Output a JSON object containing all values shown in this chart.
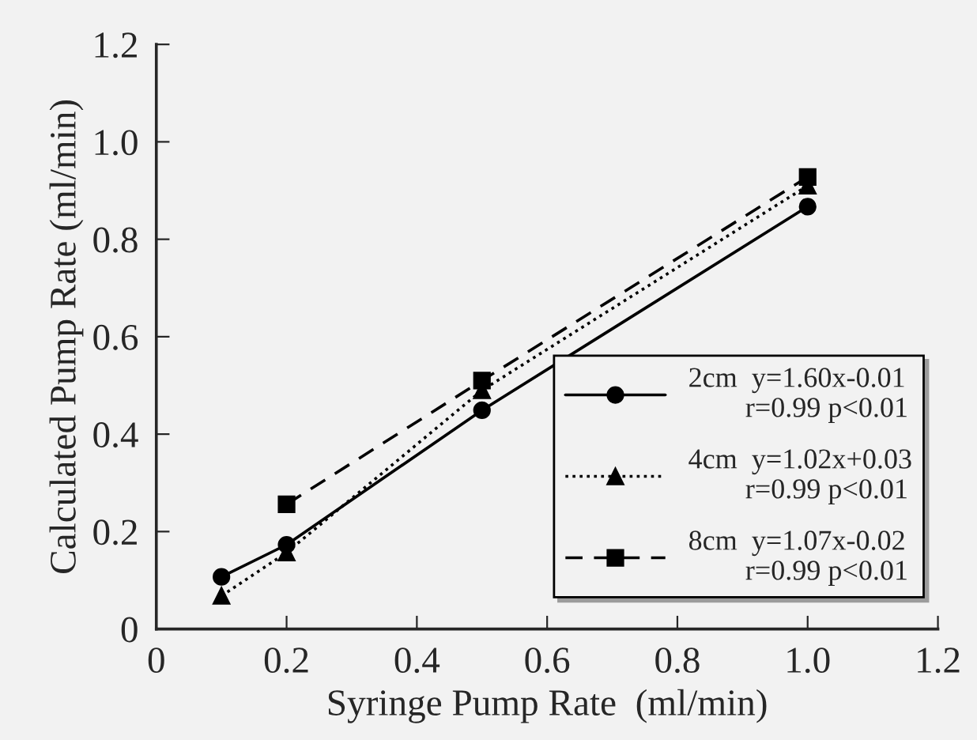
{
  "chart_data": {
    "type": "line",
    "xlabel": "Syringe Pump Rate  (ml/min)",
    "ylabel": "Calculated Pump Rate (ml/min)",
    "xlim": [
      0,
      1.2
    ],
    "xticks": [
      0,
      0.2,
      0.4,
      0.6,
      0.8,
      {
        "value": 1.0,
        "label": "1.0"
      },
      1.2
    ],
    "ylim": [
      0,
      1.2
    ],
    "yticks": [
      0,
      0.2,
      0.4,
      0.6,
      0.8,
      {
        "value": 1.0,
        "label": "1.0"
      },
      1.2
    ],
    "grid": false,
    "legend": "bottom right",
    "series": [
      {
        "name": "2cm  y=1.60x-0.01\n        r=0.99 p<0.01",
        "color": "#000000",
        "marker": "circle",
        "line_style": "solid",
        "x": [
          0.1,
          0.2,
          0.5,
          1.0
        ],
        "values": [
          0.107,
          0.173,
          0.449,
          0.867
        ]
      },
      {
        "name": "4cm  y=1.02x+0.03\n        r=0.99 p<0.01",
        "color": "#000000",
        "marker": "triangle",
        "line_style": "dotted",
        "x": [
          0.1,
          0.2,
          0.5,
          1.0
        ],
        "values": [
          0.068,
          0.157,
          0.49,
          0.91
        ]
      },
      {
        "name": "8cm  y=1.07x-0.02\n        r=0.99 p<0.01",
        "color": "#000000",
        "marker": "square",
        "line_style": "dashed",
        "x": [
          0.2,
          0.5,
          1.0
        ],
        "values": [
          0.256,
          0.51,
          0.928
        ]
      }
    ]
  }
}
